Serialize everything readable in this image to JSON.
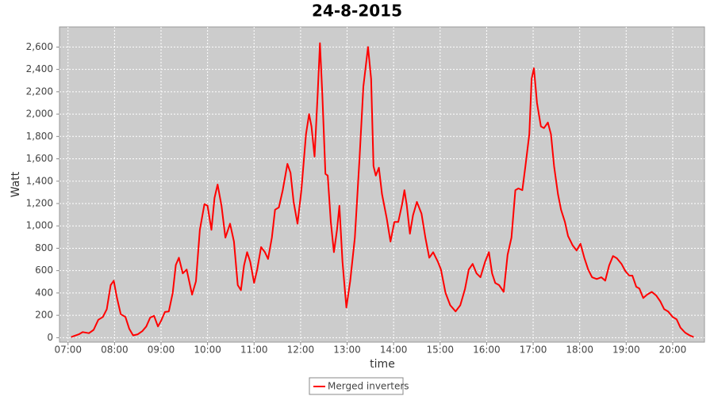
{
  "chart_data": {
    "type": "line",
    "title": "24-8-2015",
    "x_label": "time",
    "y_label": "Watt",
    "x": [
      "07:04",
      "07:14",
      "07:19",
      "07:27",
      "07:33",
      "07:39",
      "07:45",
      "07:50",
      "07:55",
      "07:59",
      "08:03",
      "08:08",
      "08:14",
      "08:19",
      "08:24",
      "08:30",
      "08:36",
      "08:41",
      "08:46",
      "08:51",
      "08:56",
      "09:00",
      "09:05",
      "09:10",
      "09:15",
      "09:19",
      "09:23",
      "09:28",
      "09:33",
      "09:40",
      "09:45",
      "09:50",
      "09:56",
      "10:00",
      "10:05",
      "10:09",
      "10:13",
      "10:18",
      "10:23",
      "10:29",
      "10:34",
      "10:39",
      "10:43",
      "10:47",
      "10:51",
      "10:55",
      "11:00",
      "11:04",
      "11:09",
      "11:14",
      "11:18",
      "11:23",
      "11:27",
      "11:32",
      "11:37",
      "11:43",
      "11:47",
      "11:51",
      "11:56",
      "12:01",
      "12:07",
      "12:11",
      "12:14",
      "12:18",
      "12:22",
      "12:25",
      "12:28",
      "12:32",
      "12:35",
      "12:39",
      "12:43",
      "12:47",
      "12:50",
      "12:54",
      "12:59",
      "13:04",
      "13:10",
      "13:16",
      "13:21",
      "13:27",
      "13:31",
      "13:34",
      "13:37",
      "13:41",
      "13:45",
      "13:51",
      "13:56",
      "14:01",
      "14:06",
      "14:11",
      "14:14",
      "14:17",
      "14:21",
      "14:25",
      "14:30",
      "14:36",
      "14:41",
      "14:46",
      "14:51",
      "14:57",
      "15:01",
      "15:07",
      "15:13",
      "15:20",
      "15:26",
      "15:32",
      "15:37",
      "15:42",
      "15:47",
      "15:52",
      "15:58",
      "16:03",
      "16:07",
      "16:11",
      "16:16",
      "16:22",
      "16:27",
      "16:32",
      "16:37",
      "16:41",
      "16:46",
      "16:50",
      "16:55",
      "16:58",
      "17:01",
      "17:05",
      "17:10",
      "17:14",
      "17:19",
      "17:23",
      "17:27",
      "17:32",
      "17:36",
      "17:41",
      "17:45",
      "17:51",
      "17:56",
      "18:01",
      "18:06",
      "18:11",
      "18:16",
      "18:22",
      "18:28",
      "18:33",
      "18:38",
      "18:43",
      "18:48",
      "18:54",
      "18:59",
      "19:04",
      "19:08",
      "19:13",
      "19:17",
      "19:22",
      "19:27",
      "19:33",
      "19:39",
      "19:44",
      "19:49",
      "19:54",
      "20:00",
      "20:05",
      "20:10",
      "20:16",
      "20:22",
      "20:27"
    ],
    "series": [
      {
        "name": "Merged inverters",
        "color": "#ff0000",
        "values": [
          5,
          30,
          50,
          40,
          70,
          160,
          185,
          255,
          470,
          510,
          360,
          210,
          185,
          80,
          20,
          30,
          60,
          100,
          180,
          195,
          100,
          150,
          230,
          235,
          400,
          650,
          715,
          575,
          610,
          385,
          505,
          965,
          1195,
          1180,
          965,
          1250,
          1370,
          1180,
          895,
          1020,
          860,
          470,
          425,
          645,
          765,
          680,
          490,
          610,
          810,
          765,
          705,
          895,
          1145,
          1165,
          1320,
          1555,
          1475,
          1215,
          1020,
          1320,
          1820,
          2000,
          1890,
          1620,
          2175,
          2635,
          2175,
          1465,
          1450,
          1035,
          765,
          965,
          1180,
          680,
          270,
          505,
          895,
          1605,
          2245,
          2600,
          2315,
          1535,
          1450,
          1520,
          1285,
          1070,
          860,
          1035,
          1035,
          1195,
          1320,
          1180,
          930,
          1095,
          1215,
          1110,
          895,
          715,
          765,
          680,
          610,
          400,
          290,
          235,
          290,
          435,
          610,
          660,
          575,
          540,
          680,
          765,
          575,
          490,
          470,
          410,
          740,
          895,
          1320,
          1335,
          1320,
          1535,
          1820,
          2315,
          2410,
          2100,
          1890,
          1875,
          1925,
          1820,
          1535,
          1285,
          1145,
          1035,
          910,
          825,
          780,
          840,
          715,
          610,
          540,
          525,
          540,
          510,
          645,
          730,
          710,
          660,
          595,
          555,
          555,
          455,
          440,
          355,
          385,
          410,
          375,
          325,
          255,
          235,
          185,
          165,
          90,
          45,
          20,
          5
        ]
      }
    ],
    "xlim": [
      "06:49",
      "20:41"
    ],
    "xticks": [
      "07:00",
      "08:00",
      "09:00",
      "10:00",
      "11:00",
      "12:00",
      "13:00",
      "14:00",
      "15:00",
      "16:00",
      "17:00",
      "18:00",
      "19:00",
      "20:00"
    ],
    "ylim": [
      -40,
      2780
    ],
    "yticks": [
      0,
      200,
      400,
      600,
      800,
      {
        "value": 1000,
        "label": "1,000"
      },
      {
        "value": 1200,
        "label": "1,200"
      },
      {
        "value": 1400,
        "label": "1,400"
      },
      {
        "value": 1600,
        "label": "1,600"
      },
      {
        "value": 1800,
        "label": "1,800"
      },
      {
        "value": 2000,
        "label": "2,000"
      },
      {
        "value": 2200,
        "label": "2,200"
      },
      {
        "value": 2400,
        "label": "2,400"
      },
      {
        "value": 2600,
        "label": "2,600"
      }
    ],
    "grid": true
  }
}
